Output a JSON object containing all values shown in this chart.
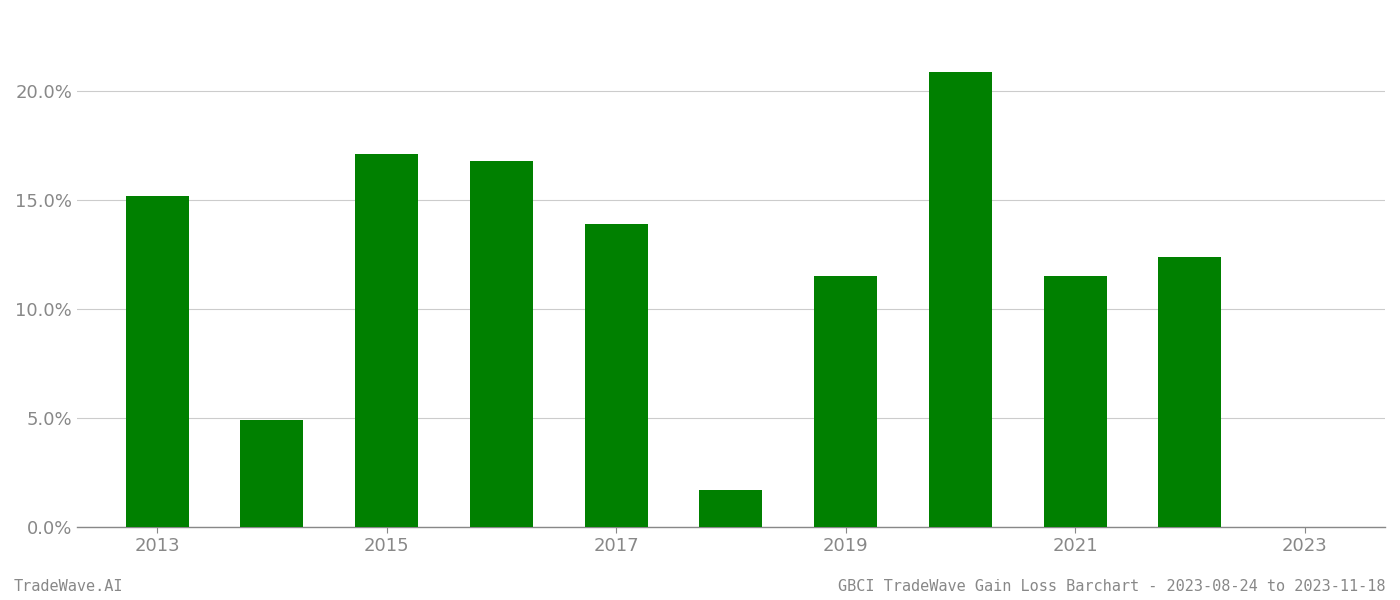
{
  "years": [
    2013,
    2014,
    2015,
    2016,
    2017,
    2018,
    2019,
    2020,
    2021,
    2022
  ],
  "values": [
    0.152,
    0.049,
    0.171,
    0.168,
    0.139,
    0.017,
    0.115,
    0.209,
    0.115,
    0.124
  ],
  "bar_color": "#008000",
  "bg_color": "#ffffff",
  "grid_color": "#cccccc",
  "axis_color": "#888888",
  "tick_color": "#888888",
  "ylim": [
    0,
    0.235
  ],
  "yticks": [
    0.0,
    0.05,
    0.1,
    0.15,
    0.2
  ],
  "ytick_labels": [
    "0.0%",
    "5.0%",
    "10.0%",
    "15.0%",
    "20.0%"
  ],
  "xtick_positions": [
    2013,
    2015,
    2017,
    2019,
    2021,
    2023
  ],
  "xtick_labels": [
    "2013",
    "2015",
    "2017",
    "2019",
    "2021",
    "2023"
  ],
  "xlim": [
    2012.3,
    2023.7
  ],
  "footer_left": "TradeWave.AI",
  "footer_right": "GBCI TradeWave Gain Loss Barchart - 2023-08-24 to 2023-11-18",
  "footer_fontsize": 11,
  "tick_fontsize": 13,
  "bar_width": 0.55
}
